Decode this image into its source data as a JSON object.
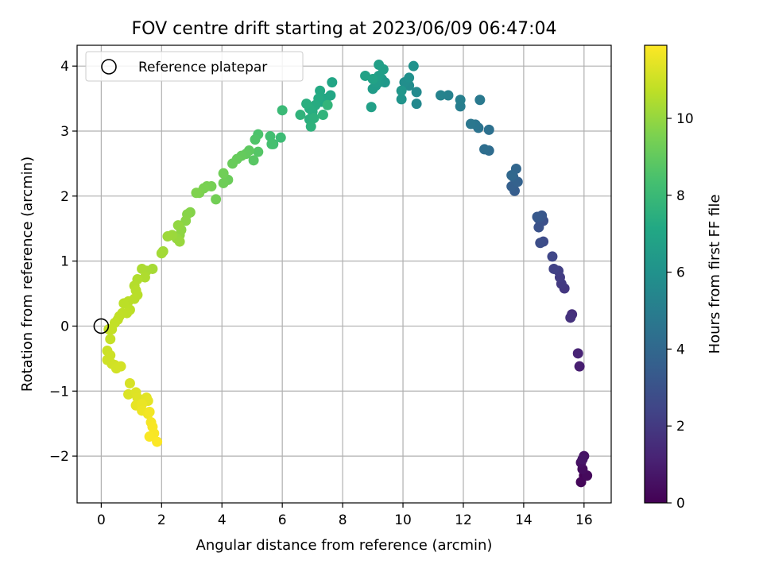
{
  "chart_data": {
    "type": "scatter",
    "title": "FOV centre drift starting at 2023/06/09 06:47:04",
    "xlabel": "Angular distance from reference (arcmin)",
    "ylabel": "Rotation from reference (arcmin)",
    "xlim": [
      -0.8,
      16.9
    ],
    "ylim": [
      -2.72,
      4.32
    ],
    "xticks": [
      0,
      2,
      4,
      6,
      8,
      10,
      12,
      14,
      16
    ],
    "xtick_labels": [
      "0",
      "2",
      "4",
      "6",
      "8",
      "10",
      "12",
      "14",
      "16"
    ],
    "yticks": [
      -2,
      -1,
      0,
      1,
      2,
      3,
      4
    ],
    "ytick_labels": [
      "−2",
      "−1",
      "0",
      "1",
      "2",
      "3",
      "4"
    ],
    "grid": true,
    "legend": {
      "placement": "top-left",
      "entries": [
        "Reference platepar"
      ]
    },
    "reference_point": {
      "x": 0,
      "y": 0,
      "marker": "open-circle"
    },
    "colorbar": {
      "label": "Hours from first FF file",
      "range": [
        0,
        11.9
      ],
      "ticks": [
        0,
        2,
        4,
        6,
        8,
        10
      ],
      "tick_labels": [
        "0",
        "2",
        "4",
        "6",
        "8",
        "10"
      ],
      "colormap": "viridis"
    },
    "points": [
      [
        16.0,
        -2.3,
        0.1
      ],
      [
        15.9,
        -2.4,
        0.2
      ],
      [
        16.1,
        -2.3,
        0.3
      ],
      [
        15.95,
        -2.2,
        0.4
      ],
      [
        15.9,
        -2.1,
        0.5
      ],
      [
        16.0,
        -2.0,
        0.6
      ],
      [
        15.95,
        -2.05,
        0.7
      ],
      [
        15.85,
        -0.62,
        1.0
      ],
      [
        15.8,
        -0.42,
        1.2
      ],
      [
        15.6,
        0.18,
        1.6
      ],
      [
        15.55,
        0.13,
        1.7
      ],
      [
        15.35,
        0.58,
        1.9
      ],
      [
        15.25,
        0.65,
        2.0
      ],
      [
        15.2,
        0.75,
        2.1
      ],
      [
        15.15,
        0.85,
        2.2
      ],
      [
        15.0,
        0.88,
        2.3
      ],
      [
        14.95,
        1.07,
        2.5
      ],
      [
        14.65,
        1.3,
        2.7
      ],
      [
        14.55,
        1.28,
        2.8
      ],
      [
        14.65,
        1.62,
        2.9
      ],
      [
        14.5,
        1.52,
        3.0
      ],
      [
        14.5,
        1.65,
        3.1
      ],
      [
        14.6,
        1.7,
        3.2
      ],
      [
        14.45,
        1.68,
        3.3
      ],
      [
        13.7,
        2.08,
        3.5
      ],
      [
        13.6,
        2.15,
        3.6
      ],
      [
        13.8,
        2.22,
        3.7
      ],
      [
        13.65,
        2.3,
        3.8
      ],
      [
        13.75,
        2.42,
        3.9
      ],
      [
        13.6,
        2.32,
        4.0
      ],
      [
        12.85,
        2.7,
        4.2
      ],
      [
        12.7,
        2.72,
        4.3
      ],
      [
        12.85,
        3.02,
        4.4
      ],
      [
        12.5,
        3.05,
        4.5
      ],
      [
        12.4,
        3.1,
        4.6
      ],
      [
        12.25,
        3.11,
        4.7
      ],
      [
        12.55,
        3.48,
        4.8
      ],
      [
        11.9,
        3.38,
        5.0
      ],
      [
        11.9,
        3.48,
        5.1
      ],
      [
        11.5,
        3.55,
        5.2
      ],
      [
        11.25,
        3.55,
        5.3
      ],
      [
        10.45,
        3.42,
        5.5
      ],
      [
        10.45,
        3.6,
        5.6
      ],
      [
        10.2,
        3.7,
        5.7
      ],
      [
        10.05,
        3.75,
        5.8
      ],
      [
        10.2,
        3.82,
        5.9
      ],
      [
        10.35,
        4.0,
        6.0
      ],
      [
        9.95,
        3.49,
        6.1
      ],
      [
        9.95,
        3.62,
        6.2
      ],
      [
        9.4,
        3.75,
        6.3
      ],
      [
        9.3,
        3.8,
        6.35
      ],
      [
        9.2,
        3.75,
        6.4
      ],
      [
        9.1,
        3.7,
        6.45
      ],
      [
        9.0,
        3.65,
        6.5
      ],
      [
        9.1,
        3.75,
        6.55
      ],
      [
        9.2,
        3.85,
        6.6
      ],
      [
        9.35,
        3.95,
        6.65
      ],
      [
        9.2,
        4.02,
        6.7
      ],
      [
        8.95,
        3.37,
        6.75
      ],
      [
        8.75,
        3.85,
        6.8
      ],
      [
        9.0,
        3.8,
        6.85
      ],
      [
        7.65,
        3.75,
        7.0
      ],
      [
        7.6,
        3.55,
        7.05
      ],
      [
        7.45,
        3.5,
        7.1
      ],
      [
        7.3,
        3.45,
        7.15
      ],
      [
        7.25,
        3.62,
        7.2
      ],
      [
        7.2,
        3.5,
        7.25
      ],
      [
        7.1,
        3.4,
        7.3
      ],
      [
        7.0,
        3.3,
        7.35
      ],
      [
        6.9,
        3.35,
        7.4
      ],
      [
        6.8,
        3.42,
        7.45
      ],
      [
        6.9,
        3.18,
        7.5
      ],
      [
        7.05,
        3.2,
        7.55
      ],
      [
        6.95,
        3.07,
        7.6
      ],
      [
        6.6,
        3.25,
        7.65
      ],
      [
        7.35,
        3.25,
        7.7
      ],
      [
        7.5,
        3.4,
        7.75
      ],
      [
        6.0,
        3.32,
        8.0
      ],
      [
        5.95,
        2.9,
        8.1
      ],
      [
        5.7,
        2.8,
        8.2
      ],
      [
        5.6,
        2.92,
        8.3
      ],
      [
        5.65,
        2.8,
        8.35
      ],
      [
        5.2,
        2.95,
        8.5
      ],
      [
        5.1,
        2.87,
        8.6
      ],
      [
        5.2,
        2.68,
        8.7
      ],
      [
        5.05,
        2.55,
        8.8
      ],
      [
        4.9,
        2.7,
        8.9
      ],
      [
        4.8,
        2.65,
        9.0
      ],
      [
        4.65,
        2.62,
        9.05
      ],
      [
        4.5,
        2.57,
        9.1
      ],
      [
        4.35,
        2.5,
        9.15
      ],
      [
        4.2,
        2.25,
        9.2
      ],
      [
        4.05,
        2.2,
        9.25
      ],
      [
        4.05,
        2.35,
        9.3
      ],
      [
        3.8,
        1.95,
        9.35
      ],
      [
        3.65,
        2.15,
        9.4
      ],
      [
        3.5,
        2.15,
        9.45
      ],
      [
        3.4,
        2.12,
        9.5
      ],
      [
        3.25,
        2.05,
        9.55
      ],
      [
        3.15,
        2.05,
        9.6
      ],
      [
        2.95,
        1.75,
        9.7
      ],
      [
        2.85,
        1.72,
        9.75
      ],
      [
        2.8,
        1.62,
        9.8
      ],
      [
        2.65,
        1.48,
        9.85
      ],
      [
        2.6,
        1.4,
        9.9
      ],
      [
        2.55,
        1.55,
        9.95
      ],
      [
        2.5,
        1.35,
        10.0
      ],
      [
        2.6,
        1.3,
        10.05
      ],
      [
        2.35,
        1.4,
        10.1
      ],
      [
        2.2,
        1.38,
        10.15
      ],
      [
        2.05,
        1.15,
        10.2
      ],
      [
        2.0,
        1.12,
        10.25
      ],
      [
        1.7,
        0.88,
        10.3
      ],
      [
        1.5,
        0.85,
        10.35
      ],
      [
        1.35,
        0.88,
        10.4
      ],
      [
        1.45,
        0.75,
        10.45
      ],
      [
        1.2,
        0.72,
        10.5
      ],
      [
        1.1,
        0.62,
        10.55
      ],
      [
        1.15,
        0.55,
        10.6
      ],
      [
        1.2,
        0.48,
        10.62
      ],
      [
        1.1,
        0.42,
        10.64
      ],
      [
        0.9,
        0.38,
        10.66
      ],
      [
        0.75,
        0.35,
        10.68
      ],
      [
        0.95,
        0.25,
        10.7
      ],
      [
        0.85,
        0.2,
        10.72
      ],
      [
        0.7,
        0.2,
        10.74
      ],
      [
        0.6,
        0.15,
        10.76
      ],
      [
        0.55,
        0.1,
        10.78
      ],
      [
        0.45,
        0.05,
        10.8
      ],
      [
        0.35,
        -0.05,
        10.82
      ],
      [
        0.25,
        -0.05,
        10.84
      ],
      [
        0.3,
        -0.2,
        10.86
      ],
      [
        0.2,
        -0.38,
        10.95
      ],
      [
        0.3,
        -0.45,
        11.0
      ],
      [
        0.2,
        -0.52,
        11.02
      ],
      [
        0.35,
        -0.58,
        11.05
      ],
      [
        0.45,
        -0.6,
        11.08
      ],
      [
        0.5,
        -0.65,
        11.1
      ],
      [
        0.65,
        -0.62,
        11.12
      ],
      [
        0.95,
        -0.88,
        11.2
      ],
      [
        0.9,
        -1.05,
        11.25
      ],
      [
        1.15,
        -1.02,
        11.3
      ],
      [
        1.2,
        -1.1,
        11.35
      ],
      [
        1.5,
        -1.1,
        11.4
      ],
      [
        1.55,
        -1.15,
        11.45
      ],
      [
        1.15,
        -1.22,
        11.5
      ],
      [
        1.35,
        -1.2,
        11.55
      ],
      [
        1.35,
        -1.3,
        11.6
      ],
      [
        1.55,
        -1.35,
        11.65
      ],
      [
        1.6,
        -1.32,
        11.7
      ],
      [
        1.65,
        -1.48,
        11.75
      ],
      [
        1.7,
        -1.55,
        11.78
      ],
      [
        1.75,
        -1.65,
        11.8
      ],
      [
        1.6,
        -1.7,
        11.83
      ],
      [
        1.85,
        -1.78,
        11.87
      ]
    ]
  }
}
